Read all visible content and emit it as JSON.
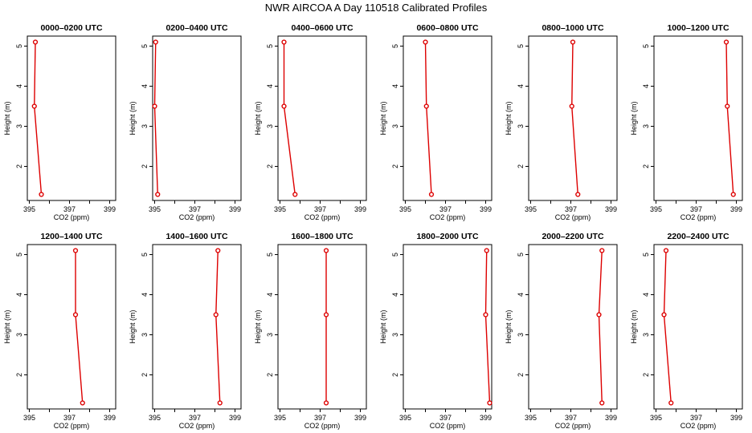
{
  "figure_title": "NWR AIRCOA A  Day 110518  Calibrated Profiles",
  "colors": {
    "series": "#dd0000",
    "axis": "#000000"
  },
  "chart_data": {
    "type": "line",
    "xlabel": "CO2 (ppm)",
    "ylabel": "Height (m)",
    "xlim": [
      394.9,
      399.3
    ],
    "ylim": [
      1.15,
      5.25
    ],
    "xticks": [
      395,
      396,
      397,
      398,
      399
    ],
    "xtick_labels": [
      "395",
      "",
      "397",
      "",
      "399"
    ],
    "yticks": [
      2,
      3,
      4,
      5
    ],
    "panels": [
      {
        "title": "0000–0200 UTC",
        "co2": [
          395.6,
          395.25,
          395.3
        ],
        "height": [
          1.3,
          3.5,
          5.1
        ]
      },
      {
        "title": "0200–0400 UTC",
        "co2": [
          395.15,
          395.0,
          395.05
        ],
        "height": [
          1.3,
          3.5,
          5.1
        ]
      },
      {
        "title": "0400–0600 UTC",
        "co2": [
          395.75,
          395.2,
          395.2
        ],
        "height": [
          1.3,
          3.5,
          5.1
        ]
      },
      {
        "title": "0600–0800 UTC",
        "co2": [
          396.3,
          396.05,
          396.0
        ],
        "height": [
          1.3,
          3.5,
          5.1
        ]
      },
      {
        "title": "0800–1000 UTC",
        "co2": [
          397.35,
          397.05,
          397.1
        ],
        "height": [
          1.3,
          3.5,
          5.1
        ]
      },
      {
        "title": "1000–1200 UTC",
        "co2": [
          398.85,
          398.55,
          398.5
        ],
        "height": [
          1.3,
          3.5,
          5.1
        ]
      },
      {
        "title": "1200–1400 UTC",
        "co2": [
          397.65,
          397.3,
          397.3
        ],
        "height": [
          1.3,
          3.5,
          5.1
        ]
      },
      {
        "title": "1400–1600 UTC",
        "co2": [
          398.25,
          398.05,
          398.15
        ],
        "height": [
          1.3,
          3.5,
          5.1
        ]
      },
      {
        "title": "1600–1800 UTC",
        "co2": [
          397.3,
          397.3,
          397.3
        ],
        "height": [
          1.3,
          3.5,
          5.1
        ]
      },
      {
        "title": "1800–2000 UTC",
        "co2": [
          399.2,
          399.0,
          399.05
        ],
        "height": [
          1.3,
          3.5,
          5.1
        ]
      },
      {
        "title": "2000–2200 UTC",
        "co2": [
          398.55,
          398.4,
          398.55
        ],
        "height": [
          1.3,
          3.5,
          5.1
        ]
      },
      {
        "title": "2200–2400 UTC",
        "co2": [
          395.75,
          395.4,
          395.5
        ],
        "height": [
          1.3,
          3.5,
          5.1
        ]
      }
    ]
  }
}
